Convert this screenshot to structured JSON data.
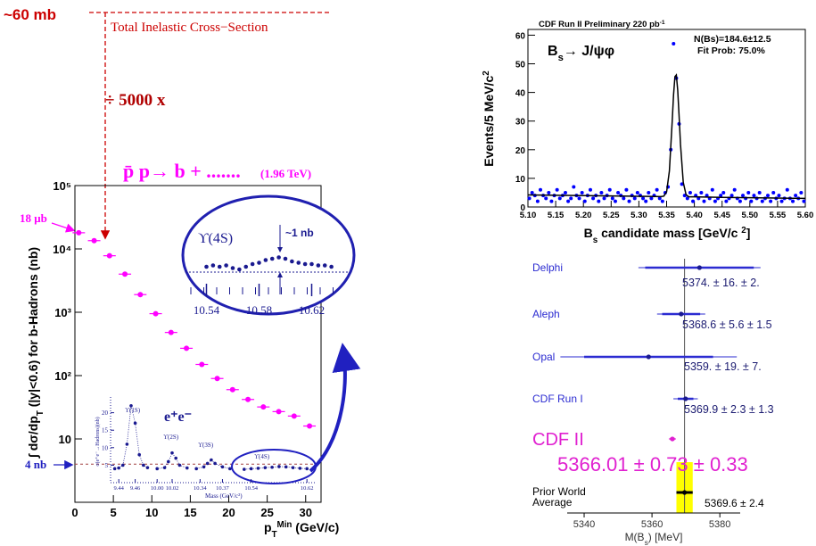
{
  "chart_data": [
    {
      "type": "scatter",
      "ylog": true,
      "color": "#ff00ff",
      "x": [
        0.5,
        2.5,
        4.5,
        6.5,
        8.5,
        10.5,
        12.5,
        14.5,
        16.5,
        18.5,
        20.5,
        22.5,
        24.5,
        26.5,
        28.5,
        30.5
      ],
      "values": [
        18000,
        13500,
        7800,
        4000,
        1900,
        950,
        480,
        270,
        150,
        90,
        60,
        42,
        32,
        27,
        23,
        16
      ],
      "xlim": [
        0,
        32
      ],
      "ylim": [
        1,
        100000
      ],
      "xticks": [
        0,
        5,
        10,
        15,
        20,
        25,
        30
      ],
      "yticks": [
        {
          "value": 10,
          "label": "10"
        },
        {
          "value": 100,
          "label": "10²"
        },
        {
          "value": 1000,
          "label": "10³"
        },
        {
          "value": 10000,
          "label": "10⁴"
        },
        {
          "value": 100000,
          "label": "10⁵"
        }
      ],
      "y_label": [
        {
          "text": "∫ dσ/dp"
        },
        {
          "text": "T",
          "pos": "sub"
        },
        {
          "text": " (|y|<0.6) for b-Hadrons  (nb)"
        }
      ],
      "x_label": [
        {
          "text": "p"
        },
        {
          "text": "T",
          "pos": "sub"
        },
        {
          "text": "Min",
          "pos": "sup"
        },
        {
          "text": "  (GeV/c)"
        }
      ],
      "reference_line": 4,
      "annotations": {
        "cross_section": "~60 mb",
        "inelastic": "Total Inelastic Cross−Section",
        "factor": "÷ 5000 x",
        "process": "p̄ p→ b + .......",
        "energy": "(1.96 TeV)",
        "first_point": "18 μb",
        "floor": "4 nb"
      },
      "inset_4s": {
        "label": "ϒ(4S)",
        "note": "~1 nb",
        "xlim": [
          10.52,
          10.64
        ],
        "ylim": [
          3,
          7
        ],
        "xticks": [
          10.54,
          10.58,
          10.62
        ],
        "x": [
          10.54,
          10.545,
          10.55,
          10.555,
          10.56,
          10.565,
          10.57,
          10.575,
          10.58,
          10.585,
          10.59,
          10.595,
          10.6,
          10.605,
          10.61,
          10.615,
          10.62,
          10.625,
          10.63,
          10.635
        ],
        "values": [
          4.4,
          4.5,
          4.4,
          4.5,
          4.3,
          4.2,
          4.4,
          4.6,
          4.7,
          4.9,
          5.0,
          5.1,
          5.0,
          4.8,
          4.7,
          4.6,
          4.6,
          4.5,
          4.5,
          4.4
        ]
      },
      "inset_ee": {
        "title": "e⁺e⁻",
        "y_label": "σ(e⁺e⁻→Hadrons)(nb)",
        "x_label": "Mass (GeV/c²)",
        "ylim": [
          0,
          25
        ],
        "yticks": [
          5,
          10,
          15,
          20
        ],
        "segments": [
          {
            "label": "ϒ(1S)",
            "xlim": [
              9.43,
              9.48
            ],
            "xticks": [
              9.44,
              9.46
            ],
            "x": [
              9.435,
              9.44,
              9.445,
              9.45,
              9.455,
              9.46,
              9.465,
              9.47,
              9.475
            ],
            "values": [
              4,
              4.2,
              5,
              11,
              22,
              17,
              8,
              5,
              4.3
            ]
          },
          {
            "label": "ϒ(2S)",
            "xlim": [
              9.995,
              10.045
            ],
            "xticks": [
              {
                "value": 10.0,
                "label": "10.00"
              },
              10.02
            ],
            "x": [
              10.0,
              10.01,
              10.015,
              10.02,
              10.025,
              10.03,
              10.04
            ],
            "values": [
              4,
              4.3,
              6,
              8.5,
              7,
              5,
              4.2
            ]
          },
          {
            "label": "ϒ(3S)",
            "xlim": [
              10.33,
              10.385
            ],
            "xticks": [
              10.34,
              10.37
            ],
            "x": [
              10.335,
              10.345,
              10.35,
              10.355,
              10.36,
              10.37,
              10.38
            ],
            "values": [
              4,
              4.5,
              5.5,
              6.5,
              5.5,
              4.5,
              4
            ]
          },
          {
            "label": "ϒ(4S)",
            "xlim": [
              10.52,
              10.63
            ],
            "xticks": [
              10.54,
              10.62
            ],
            "x": [
              10.53,
              10.54,
              10.55,
              10.56,
              10.57,
              10.58,
              10.59,
              10.6,
              10.61,
              10.62
            ],
            "values": [
              3.8,
              4,
              4.1,
              4.3,
              4.4,
              4.6,
              4.5,
              4.3,
              4.1,
              4
            ]
          }
        ]
      }
    },
    {
      "type": "scatter",
      "color": "#0000ff",
      "fit_color": "#000000",
      "title": [
        {
          "text": "CDF Run II Preliminary  220 pb"
        },
        {
          "text": "-1",
          "pos": "sup"
        }
      ],
      "decay": [
        {
          "text": "B"
        },
        {
          "text": "s",
          "pos": "sub"
        },
        {
          "text": "→ J/ψφ"
        }
      ],
      "fit_yield": "N(Bs)=184.6±12.5",
      "fit_prob": "Fit Prob: 75.0%",
      "y_label": [
        {
          "text": "Events/5 MeV/c"
        },
        {
          "text": "2",
          "pos": "sup"
        }
      ],
      "x_label": [
        {
          "text": "B"
        },
        {
          "text": "s",
          "pos": "sub"
        },
        {
          "text": " candidate mass [GeV/c "
        },
        {
          "text": "2",
          "pos": "sup"
        },
        {
          "text": "]"
        }
      ],
      "xlim": [
        5.1,
        5.6
      ],
      "ylim": [
        0,
        62
      ],
      "xticks": [
        {
          "value": 5.1,
          "label": "5.10"
        },
        5.15,
        {
          "value": 5.2,
          "label": "5.20"
        },
        5.25,
        {
          "value": 5.3,
          "label": "5.30"
        },
        5.35,
        {
          "value": 5.4,
          "label": "5.40"
        },
        5.45,
        {
          "value": 5.5,
          "label": "5.50"
        },
        5.55,
        {
          "value": 5.6,
          "label": "5.60"
        }
      ],
      "yticks": [
        0,
        10,
        20,
        30,
        40,
        50,
        60
      ],
      "x": [
        5.1025,
        5.1075,
        5.1125,
        5.1175,
        5.1225,
        5.1275,
        5.1325,
        5.1375,
        5.1425,
        5.1475,
        5.1525,
        5.1575,
        5.1625,
        5.1675,
        5.1725,
        5.1775,
        5.1825,
        5.1875,
        5.1925,
        5.1975,
        5.2025,
        5.2075,
        5.2125,
        5.2175,
        5.2225,
        5.2275,
        5.2325,
        5.2375,
        5.2425,
        5.2475,
        5.2525,
        5.2575,
        5.2625,
        5.2675,
        5.2725,
        5.2775,
        5.2825,
        5.2875,
        5.2925,
        5.2975,
        5.3025,
        5.3075,
        5.3125,
        5.3175,
        5.3225,
        5.3275,
        5.3325,
        5.3375,
        5.3425,
        5.3475,
        5.3525,
        5.3575,
        5.3625,
        5.3675,
        5.3725,
        5.3775,
        5.3825,
        5.3875,
        5.3925,
        5.3975,
        5.4025,
        5.4075,
        5.4125,
        5.4175,
        5.4225,
        5.4275,
        5.4325,
        5.4375,
        5.4425,
        5.4475,
        5.4525,
        5.4575,
        5.4625,
        5.4675,
        5.4725,
        5.4775,
        5.4825,
        5.4875,
        5.4925,
        5.4975,
        5.5025,
        5.5075,
        5.5125,
        5.5175,
        5.5225,
        5.5275,
        5.5325,
        5.5375,
        5.5425,
        5.5475,
        5.5525,
        5.5575,
        5.5625,
        5.5675,
        5.5725,
        5.5775,
        5.5825,
        5.5875,
        5.5925,
        5.5975
      ],
      "values": [
        3,
        5,
        4,
        2,
        6,
        4,
        3,
        5,
        2,
        4,
        6,
        3,
        4,
        5,
        2,
        3,
        7,
        4,
        3,
        5,
        2,
        4,
        6,
        3,
        4,
        2,
        5,
        3,
        4,
        6,
        3,
        2,
        5,
        4,
        3,
        6,
        2,
        4,
        3,
        5,
        4,
        3,
        2,
        5,
        3,
        4,
        6,
        3,
        2,
        5,
        7,
        20,
        57,
        45,
        29,
        8,
        4,
        3,
        5,
        2,
        4,
        3,
        5,
        2,
        4,
        3,
        6,
        2,
        3,
        4,
        5,
        2,
        3,
        4,
        6,
        3,
        2,
        4,
        3,
        5,
        2,
        4,
        3,
        5,
        2,
        3,
        4,
        2,
        5,
        3,
        4,
        2,
        3,
        6,
        3,
        2,
        4,
        3,
        5,
        2
      ],
      "fit_x": [
        5.1,
        5.15,
        5.2,
        5.25,
        5.3,
        5.33,
        5.34,
        5.345,
        5.35,
        5.355,
        5.36,
        5.3625,
        5.365,
        5.3675,
        5.37,
        5.3725,
        5.375,
        5.38,
        5.385,
        5.39,
        5.4,
        5.45,
        5.5,
        5.55,
        5.6
      ],
      "fit_values": [
        4.2,
        4.08,
        3.96,
        3.84,
        3.72,
        3.65,
        3.62,
        3.8,
        5.3,
        12.6,
        29.7,
        39.2,
        45.5,
        46.1,
        40.8,
        31.7,
        21.9,
        8.6,
        4.3,
        3.55,
        3.53,
        3.36,
        3.24,
        3.12,
        3.0
      ]
    },
    {
      "type": "errorbar",
      "x_label": [
        {
          "text": "M(B"
        },
        {
          "text": "s",
          "pos": "sub"
        },
        {
          "text": ") [MeV]"
        }
      ],
      "xlim": [
        5335,
        5386
      ],
      "xticks": [
        5340,
        5360,
        5380
      ],
      "measurements": [
        {
          "name": "Delphi",
          "value": 5374,
          "stat": 16,
          "syst": 2,
          "label": "5374. ± 16. ± 2.",
          "color": "#2b2bd1"
        },
        {
          "name": "Aleph",
          "value": 5368.6,
          "stat": 5.6,
          "syst": 1.5,
          "label": "5368.6 ± 5.6 ± 1.5",
          "color": "#2b2bd1"
        },
        {
          "name": "Opal",
          "value": 5359,
          "stat": 19,
          "syst": 7,
          "label": "5359. ± 19. ± 7.",
          "color": "#2b2bd1"
        },
        {
          "name": "CDF Run I",
          "value": 5369.9,
          "stat": 2.3,
          "syst": 1.3,
          "label": "5369.9 ± 2.3 ± 1.3",
          "color": "#2b2bd1"
        },
        {
          "name": "CDF II",
          "value": 5366.01,
          "stat": 0.73,
          "syst": 0.33,
          "label": "5366.01 ± 0.73 ± 0.33",
          "color": "#e020d0"
        }
      ],
      "world_average": {
        "name": "Prior World Average",
        "value": 5369.6,
        "error": 2.4,
        "label": "5369.6 ± 2.4",
        "color": "#ffff00"
      }
    }
  ]
}
